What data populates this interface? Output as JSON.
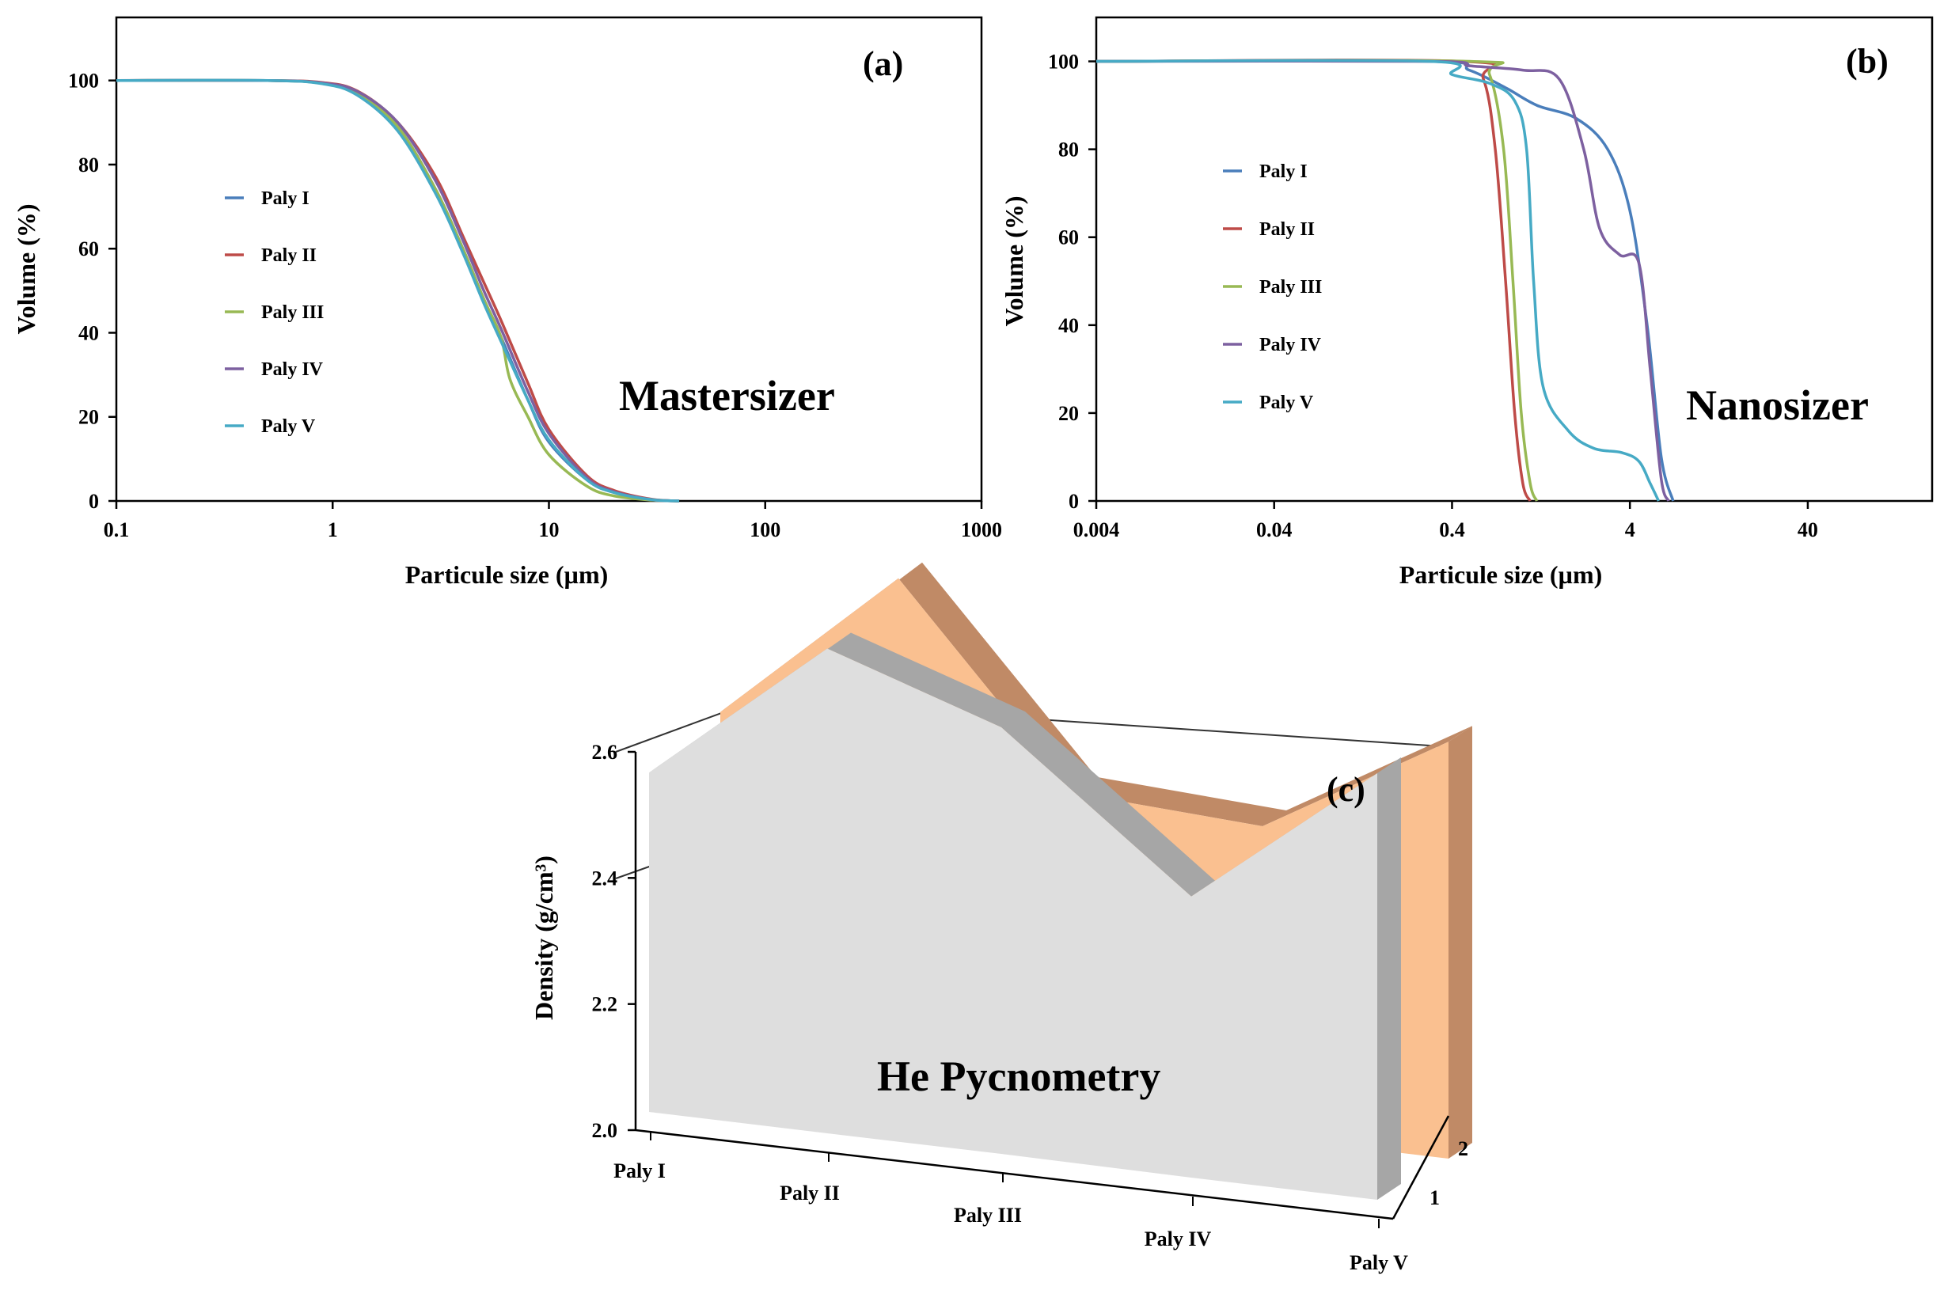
{
  "colors": {
    "paly_i": "#4a7ebb",
    "paly_ii": "#be4b48",
    "paly_iii": "#98b954",
    "paly_iv": "#7d60a0",
    "paly_v": "#46aac5",
    "series1_face": "#dedede",
    "series1_edge": "#a6a6a6",
    "series2_face": "#fac090",
    "series2_edge": "#c08a66"
  },
  "chart_data": [
    {
      "id": "a",
      "type": "line",
      "panel_label": "(a)",
      "overlay_text": "Mastersizer",
      "xlabel": "Particule size (µm)",
      "ylabel": "Volume (%)",
      "xscale": "log",
      "xlim": [
        0.1,
        1000
      ],
      "ylim": [
        0,
        115
      ],
      "xticks": [
        0.1,
        1,
        10,
        100,
        1000
      ],
      "xtick_labels": [
        "0.1",
        "1",
        "10",
        "100",
        "1000"
      ],
      "yticks": [
        0,
        20,
        40,
        60,
        80,
        100
      ],
      "yticks_labels": [
        "0",
        "20",
        "40",
        "60",
        "80",
        "100"
      ],
      "legend_position": "middle-left",
      "series": [
        {
          "name": "Paly I",
          "color_key": "paly_i",
          "points": [
            [
              0.1,
              100
            ],
            [
              0.5,
              100
            ],
            [
              0.9,
              99.3
            ],
            [
              1.3,
              97
            ],
            [
              2,
              89
            ],
            [
              3,
              74
            ],
            [
              4,
              60
            ],
            [
              5,
              48
            ],
            [
              6,
              39
            ],
            [
              8,
              24
            ],
            [
              10,
              14
            ],
            [
              15,
              5
            ],
            [
              20,
              2
            ],
            [
              30,
              0.3
            ],
            [
              40,
              0
            ]
          ]
        },
        {
          "name": "Paly II",
          "color_key": "paly_ii",
          "points": [
            [
              0.1,
              100
            ],
            [
              0.5,
              100
            ],
            [
              0.9,
              99.5
            ],
            [
              1.3,
              97.5
            ],
            [
              2,
              90
            ],
            [
              3,
              77
            ],
            [
              4,
              63
            ],
            [
              5,
              52
            ],
            [
              6,
              43
            ],
            [
              8,
              28
            ],
            [
              10,
              17
            ],
            [
              15,
              6
            ],
            [
              20,
              2.5
            ],
            [
              30,
              0.4
            ],
            [
              40,
              0
            ]
          ]
        },
        {
          "name": "Paly III",
          "color_key": "paly_iii",
          "points": [
            [
              0.1,
              100
            ],
            [
              0.5,
              100
            ],
            [
              0.9,
              99.3
            ],
            [
              1.3,
              97
            ],
            [
              2,
              89
            ],
            [
              3,
              74
            ],
            [
              4,
              60
            ],
            [
              5,
              48
            ],
            [
              6,
              39
            ],
            [
              6.6,
              29
            ],
            [
              8,
              20
            ],
            [
              10,
              11
            ],
            [
              15,
              3.5
            ],
            [
              20,
              1.2
            ],
            [
              30,
              0.2
            ],
            [
              40,
              0
            ]
          ]
        },
        {
          "name": "Paly IV",
          "color_key": "paly_iv",
          "points": [
            [
              0.1,
              100
            ],
            [
              0.5,
              100
            ],
            [
              0.9,
              99.4
            ],
            [
              1.3,
              97.4
            ],
            [
              2,
              90
            ],
            [
              3,
              76
            ],
            [
              4,
              62
            ],
            [
              5,
              50
            ],
            [
              6,
              41
            ],
            [
              8,
              26
            ],
            [
              10,
              16
            ],
            [
              15,
              5.5
            ],
            [
              20,
              2.2
            ],
            [
              30,
              0.3
            ],
            [
              40,
              0
            ]
          ]
        },
        {
          "name": "Paly V",
          "color_key": "paly_v",
          "points": [
            [
              0.1,
              100
            ],
            [
              0.5,
              100
            ],
            [
              0.9,
              99.2
            ],
            [
              1.3,
              96.5
            ],
            [
              2,
              88
            ],
            [
              3,
              73
            ],
            [
              4,
              59
            ],
            [
              5,
              47
            ],
            [
              6,
              38
            ],
            [
              8,
              24
            ],
            [
              10,
              14.5
            ],
            [
              15,
              5
            ],
            [
              20,
              2
            ],
            [
              30,
              0.3
            ],
            [
              40,
              0
            ]
          ]
        }
      ]
    },
    {
      "id": "b",
      "type": "line",
      "panel_label": "(b)",
      "overlay_text": "Nanosizer",
      "xlabel": "Particule size (µm)",
      "ylabel": "Volume (%)",
      "xscale": "log",
      "xlim": [
        0.004,
        200
      ],
      "ylim": [
        0,
        110
      ],
      "xticks": [
        0.004,
        0.04,
        0.4,
        4,
        40
      ],
      "xtick_labels": [
        "0.004",
        "0.04",
        "0.4",
        "4",
        "40"
      ],
      "yticks": [
        0,
        20,
        40,
        60,
        80,
        100
      ],
      "yticks_labels": [
        "0",
        "20",
        "40",
        "60",
        "80",
        "100"
      ],
      "legend_position": "middle-left",
      "series": [
        {
          "name": "Paly I",
          "color_key": "paly_i",
          "points": [
            [
              0.004,
              100
            ],
            [
              0.3,
              100
            ],
            [
              0.5,
              98
            ],
            [
              0.8,
              94
            ],
            [
              1.2,
              90
            ],
            [
              2,
              87
            ],
            [
              3,
              80
            ],
            [
              4,
              66
            ],
            [
              5,
              40
            ],
            [
              6,
              10
            ],
            [
              7,
              0
            ]
          ]
        },
        {
          "name": "Paly II",
          "color_key": "paly_ii",
          "points": [
            [
              0.004,
              100
            ],
            [
              0.45,
              100
            ],
            [
              0.6,
              96
            ],
            [
              0.7,
              80
            ],
            [
              0.8,
              50
            ],
            [
              0.9,
              20
            ],
            [
              1.0,
              4
            ],
            [
              1.1,
              0
            ]
          ]
        },
        {
          "name": "Paly III",
          "color_key": "paly_iii",
          "points": [
            [
              0.004,
              100
            ],
            [
              0.5,
              100
            ],
            [
              0.65,
              97
            ],
            [
              0.78,
              80
            ],
            [
              0.88,
              50
            ],
            [
              0.98,
              20
            ],
            [
              1.1,
              4
            ],
            [
              1.2,
              0
            ]
          ]
        },
        {
          "name": "Paly IV",
          "color_key": "paly_iv",
          "points": [
            [
              0.004,
              100
            ],
            [
              0.3,
              100
            ],
            [
              0.5,
              99
            ],
            [
              1.0,
              98
            ],
            [
              1.6,
              96
            ],
            [
              2.2,
              80
            ],
            [
              2.7,
              62
            ],
            [
              3.5,
              56
            ],
            [
              4.5,
              54
            ],
            [
              5.2,
              30
            ],
            [
              6.0,
              5
            ],
            [
              6.6,
              0
            ]
          ]
        },
        {
          "name": "Paly V",
          "color_key": "paly_v",
          "points": [
            [
              0.004,
              100
            ],
            [
              0.3,
              100
            ],
            [
              0.4,
              97
            ],
            [
              0.65,
              95
            ],
            [
              0.9,
              91
            ],
            [
              1.05,
              80
            ],
            [
              1.15,
              50
            ],
            [
              1.3,
              26
            ],
            [
              1.8,
              16
            ],
            [
              2.5,
              12
            ],
            [
              3.6,
              11
            ],
            [
              4.5,
              9
            ],
            [
              5.2,
              4
            ],
            [
              5.8,
              0
            ]
          ]
        }
      ]
    },
    {
      "id": "c",
      "type": "area",
      "render": "3d-area",
      "panel_label": "(c)",
      "overlay_text": "He Pycnometry",
      "ylabel": "Density (g/cm³)",
      "categories": [
        "Paly I",
        "Paly II",
        "Paly III",
        "Paly IV",
        "Paly V"
      ],
      "depth_labels": [
        "1",
        "2"
      ],
      "ylim": [
        2.0,
        2.6
      ],
      "yticks": [
        2.0,
        2.2,
        2.4,
        2.6
      ],
      "ytick_labels": [
        "2.0",
        "2.2",
        "2.4",
        "2.6"
      ],
      "series": [
        {
          "name": "1",
          "color_key": "series1",
          "values": [
            2.35,
            2.5,
            2.44,
            2.29,
            2.44
          ]
        },
        {
          "name": "2",
          "color_key": "series2",
          "values": [
            2.37,
            2.53,
            2.33,
            2.32,
            2.43
          ]
        }
      ]
    }
  ]
}
